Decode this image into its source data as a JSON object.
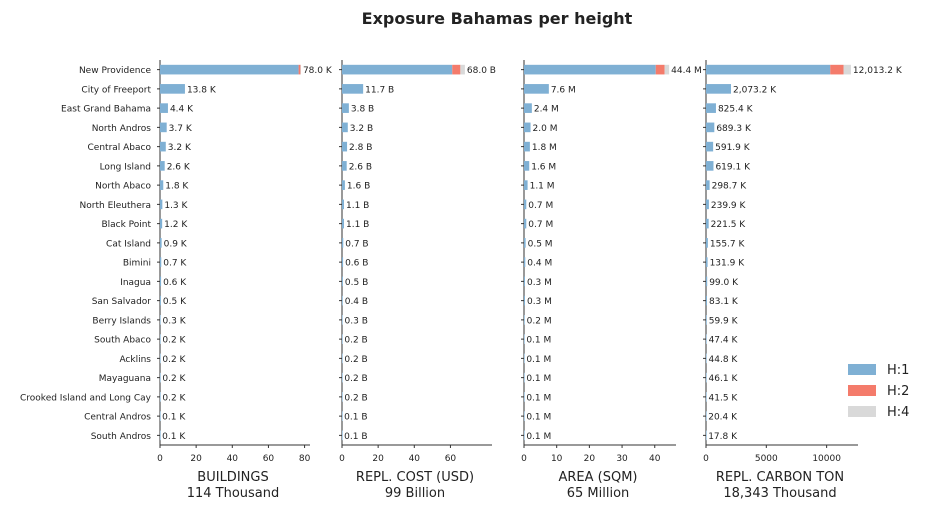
{
  "chart_data": {
    "type": "bar",
    "title": "Exposure Bahamas per height",
    "categories": [
      "New Providence",
      "City of Freeport",
      "East Grand Bahama",
      "North Andros",
      "Central Abaco",
      "Long Island",
      "North Abaco",
      "North Eleuthera",
      "Black Point",
      "Cat Island",
      "Bimini",
      "Inagua",
      "San Salvador",
      "Berry Islands",
      "South Abaco",
      "Acklins",
      "Mayaguana",
      "Crooked Island and Long Cay",
      "Central Andros",
      "South Andros"
    ],
    "legend": {
      "position": "right",
      "items": [
        {
          "name": "H:1",
          "color": "#7fb0d4"
        },
        {
          "name": "H:2",
          "color": "#f47b6b"
        },
        {
          "name": "H:4",
          "color": "#d9d9d9"
        }
      ]
    },
    "panels": [
      {
        "xlabel": "BUILDINGS",
        "subtitle": "114 Thousand",
        "xlim": [
          0,
          83
        ],
        "ticks": [
          0,
          20,
          40,
          60,
          80
        ],
        "tick_labels": [
          "0",
          "20",
          "40",
          "60",
          "80"
        ],
        "series": [
          {
            "name": "H:1",
            "values": [
              76.7,
              13.8,
              4.4,
              3.7,
              3.2,
              2.6,
              1.8,
              1.3,
              1.2,
              0.9,
              0.7,
              0.6,
              0.5,
              0.3,
              0.2,
              0.2,
              0.2,
              0.2,
              0.1,
              0.1
            ]
          },
          {
            "name": "H:2",
            "values": [
              1.0,
              0,
              0,
              0,
              0,
              0,
              0,
              0,
              0,
              0,
              0,
              0,
              0,
              0,
              0,
              0,
              0,
              0,
              0,
              0
            ]
          },
          {
            "name": "H:4",
            "values": [
              0.3,
              0,
              0,
              0,
              0,
              0,
              0,
              0,
              0,
              0,
              0,
              0,
              0,
              0,
              0,
              0,
              0,
              0,
              0,
              0
            ]
          }
        ],
        "data_labels": [
          "78.0 K",
          "13.8 K",
          "4.4 K",
          "3.7 K",
          "3.2 K",
          "2.6 K",
          "1.8 K",
          "1.3 K",
          "1.2 K",
          "0.9 K",
          "0.7 K",
          "0.6 K",
          "0.5 K",
          "0.3 K",
          "0.2 K",
          "0.2 K",
          "0.2 K",
          "0.2 K",
          "0.1 K",
          "0.1 K"
        ]
      },
      {
        "xlabel": "REPL. COST (USD)",
        "subtitle": "99 Billion",
        "xlim": [
          0,
          83
        ],
        "ticks": [
          0,
          20,
          40,
          60
        ],
        "tick_labels": [
          "0",
          "20",
          "40",
          "60"
        ],
        "series": [
          {
            "name": "H:1",
            "values": [
              61,
              11.7,
              3.8,
              3.2,
              2.8,
              2.6,
              1.6,
              1.1,
              1.1,
              0.7,
              0.6,
              0.5,
              0.4,
              0.3,
              0.2,
              0.2,
              0.2,
              0.2,
              0.1,
              0.1
            ]
          },
          {
            "name": "H:2",
            "values": [
              4.5,
              0,
              0,
              0,
              0,
              0,
              0,
              0,
              0,
              0,
              0,
              0,
              0,
              0,
              0,
              0,
              0,
              0,
              0,
              0
            ]
          },
          {
            "name": "H:4",
            "values": [
              2.5,
              0,
              0,
              0,
              0,
              0,
              0,
              0,
              0,
              0,
              0,
              0,
              0,
              0,
              0,
              0,
              0,
              0,
              0,
              0
            ]
          }
        ],
        "data_labels": [
          "68.0 B",
          "11.7 B",
          "3.8 B",
          "3.2 B",
          "2.8 B",
          "2.6 B",
          "1.6 B",
          "1.1 B",
          "1.1 B",
          "0.7 B",
          "0.6 B",
          "0.5 B",
          "0.4 B",
          "0.3 B",
          "0.2 B",
          "0.2 B",
          "0.2 B",
          "0.2 B",
          "0.1 B",
          "0.1 B"
        ]
      },
      {
        "xlabel": "AREA (SQM)",
        "subtitle": "65 Million",
        "xlim": [
          0,
          46.5
        ],
        "ticks": [
          0,
          10,
          20,
          30,
          40
        ],
        "tick_labels": [
          "0",
          "10",
          "20",
          "30",
          "40"
        ],
        "series": [
          {
            "name": "H:1",
            "values": [
              40.3,
              7.6,
              2.4,
              2.0,
              1.8,
              1.6,
              1.1,
              0.7,
              0.7,
              0.5,
              0.4,
              0.3,
              0.3,
              0.2,
              0.1,
              0.1,
              0.1,
              0.1,
              0.1,
              0.1
            ]
          },
          {
            "name": "H:2",
            "values": [
              2.7,
              0,
              0,
              0,
              0,
              0,
              0,
              0,
              0,
              0,
              0,
              0,
              0,
              0,
              0,
              0,
              0,
              0,
              0,
              0
            ]
          },
          {
            "name": "H:4",
            "values": [
              1.4,
              0,
              0,
              0,
              0,
              0,
              0,
              0,
              0,
              0,
              0,
              0,
              0,
              0,
              0,
              0,
              0,
              0,
              0,
              0
            ]
          }
        ],
        "data_labels": [
          "44.4 M",
          "7.6 M",
          "2.4 M",
          "2.0 M",
          "1.8 M",
          "1.6 M",
          "1.1 M",
          "0.7 M",
          "0.7 M",
          "0.5 M",
          "0.4 M",
          "0.3 M",
          "0.3 M",
          "0.2 M",
          "0.1 M",
          "0.1 M",
          "0.1 M",
          "0.1 M",
          "0.1 M",
          "0.1 M"
        ]
      },
      {
        "xlabel": "REPL. CARBON TON",
        "subtitle": "18,343 Thousand",
        "xlim": [
          0,
          12600
        ],
        "ticks": [
          0,
          5000,
          10000
        ],
        "tick_labels": [
          "0",
          "5000",
          "10000"
        ],
        "series": [
          {
            "name": "H:1",
            "values": [
              10300,
              2073.2,
              825.4,
              689.3,
              591.9,
              619.1,
              298.7,
              239.9,
              221.5,
              155.7,
              131.9,
              99.0,
              83.1,
              59.9,
              47.4,
              44.8,
              46.1,
              41.5,
              20.4,
              17.8
            ]
          },
          {
            "name": "H:2",
            "values": [
              1100,
              0,
              0,
              0,
              0,
              0,
              0,
              0,
              0,
              0,
              0,
              0,
              0,
              0,
              0,
              0,
              0,
              0,
              0,
              0
            ]
          },
          {
            "name": "H:4",
            "values": [
              613.2,
              0,
              0,
              0,
              0,
              0,
              0,
              0,
              0,
              0,
              0,
              0,
              0,
              0,
              0,
              0,
              0,
              0,
              0,
              0
            ]
          }
        ],
        "data_labels": [
          "12,013.2 K",
          "2,073.2 K",
          "825.4 K",
          "689.3 K",
          "591.9 K",
          "619.1 K",
          "298.7 K",
          "239.9 K",
          "221.5 K",
          "155.7 K",
          "131.9 K",
          "99.0 K",
          "83.1 K",
          "59.9 K",
          "47.4 K",
          "44.8 K",
          "46.1 K",
          "41.5 K",
          "20.4 K",
          "17.8 K"
        ]
      }
    ]
  }
}
